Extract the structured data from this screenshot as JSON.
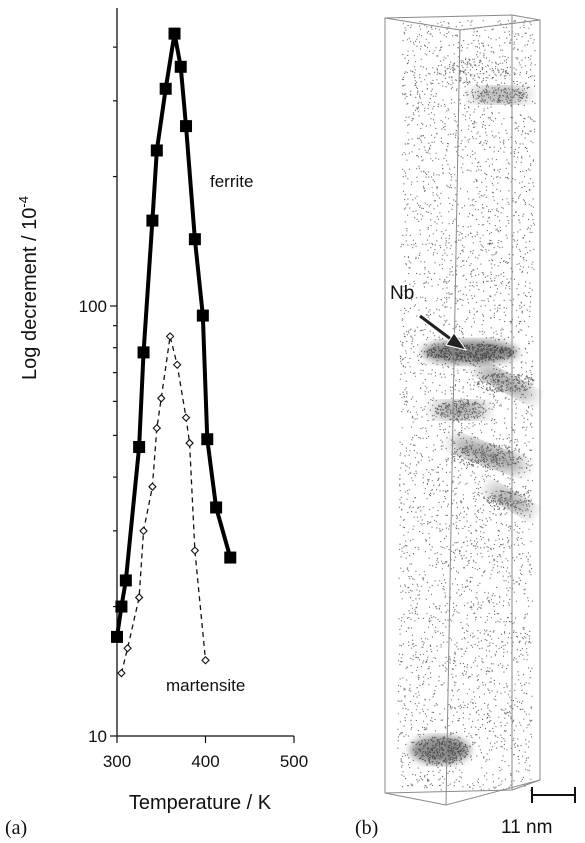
{
  "chart_data": [
    {
      "type": "line",
      "panel_label": "(a)",
      "xlabel": "Temperature / K",
      "ylabel_main": "Log decrement / 10",
      "ylabel_sup": "-4",
      "xlim": [
        300,
        500
      ],
      "ylim": [
        10,
        500
      ],
      "yscale": "log",
      "xticks": [
        300,
        400,
        500
      ],
      "xtick_labels": [
        "300",
        "400",
        "500"
      ],
      "yticks_labeled": [
        10,
        100
      ],
      "ytick_labels": [
        "10",
        "100"
      ],
      "series": [
        {
          "name": "ferrite",
          "x": [
            300,
            305,
            310,
            325,
            330,
            340,
            345,
            355,
            365,
            372,
            378,
            388,
            397,
            402,
            412,
            428
          ],
          "y": [
            17,
            20,
            23,
            47,
            78,
            158,
            230,
            320,
            430,
            360,
            262,
            143,
            95,
            49,
            34,
            26
          ]
        },
        {
          "name": "martensite",
          "x": [
            305,
            312,
            325,
            330,
            340,
            345,
            350,
            360,
            368,
            378,
            382,
            388,
            400
          ],
          "y": [
            14,
            16,
            21,
            30,
            38,
            52,
            61,
            85,
            73,
            55,
            48,
            27,
            15
          ]
        }
      ],
      "annotations": [
        "ferrite",
        "martensite"
      ]
    },
    {
      "type": "image",
      "panel_label": "(b)",
      "element_label": "Nb",
      "scale_bar_label": "11 nm"
    }
  ]
}
